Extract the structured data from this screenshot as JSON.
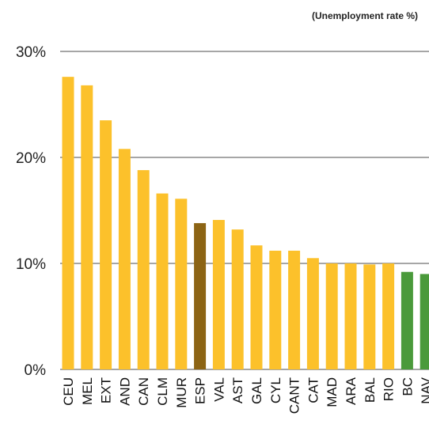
{
  "chart_data": {
    "type": "bar",
    "title": "",
    "xlabel": "",
    "ylabel": "(Unemployment rate %)",
    "ylim": [
      0,
      30
    ],
    "yticks": [
      0,
      10,
      20,
      30
    ],
    "ytick_labels": [
      "0%",
      "10%",
      "20%",
      "30%"
    ],
    "grid": true,
    "categories": [
      "CEU",
      "MEL",
      "EXT",
      "AND",
      "CAN",
      "CLM",
      "MUR",
      "ESP",
      "VAL",
      "AST",
      "GAL",
      "CYL",
      "CANT",
      "CAT",
      "MAD",
      "ARA",
      "BAL",
      "RIO",
      "BC",
      "NAV"
    ],
    "values": [
      27.6,
      26.8,
      23.5,
      20.8,
      18.8,
      16.6,
      16.1,
      13.8,
      14.1,
      13.2,
      11.7,
      11.2,
      11.2,
      10.5,
      10.0,
      10.0,
      9.9,
      10.0,
      9.2,
      9.0
    ],
    "colors": [
      "#fcc12b",
      "#fcc12b",
      "#fcc12b",
      "#fcc12b",
      "#fcc12b",
      "#fcc12b",
      "#fcc12b",
      "#8c6414",
      "#fcc12b",
      "#fcc12b",
      "#fcc12b",
      "#fcc12b",
      "#fcc12b",
      "#fcc12b",
      "#fcc12b",
      "#fcc12b",
      "#fcc12b",
      "#fcc12b",
      "#4a9a3b",
      "#4a9a3b"
    ],
    "grid_color": "#a6a6a6"
  }
}
